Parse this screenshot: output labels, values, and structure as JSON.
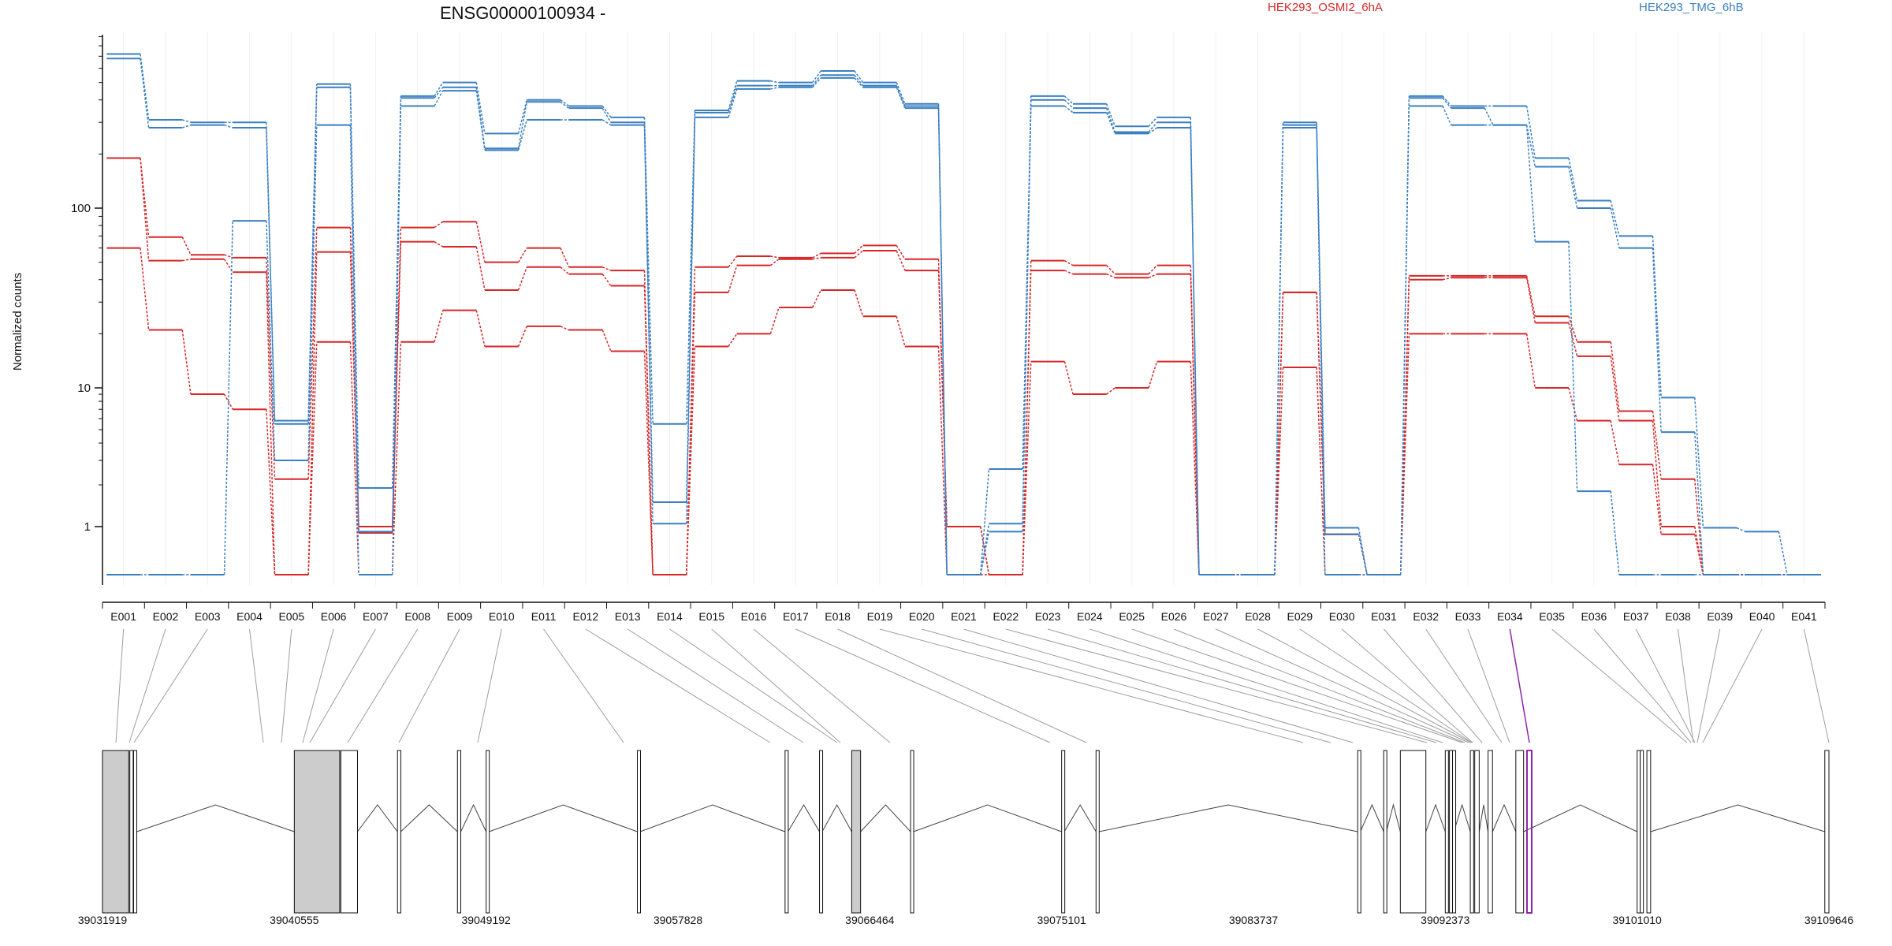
{
  "chart_data": {
    "type": "line",
    "title": "ENSG00000100934 -",
    "ylabel": "Normalized counts",
    "xlabel": "",
    "y_scale": "log",
    "ylim": [
      0.45,
      900
    ],
    "y_ticks": [
      1,
      10,
      100
    ],
    "y_tick_labels": [
      "1",
      "10",
      "100"
    ],
    "grid": "vertical light",
    "legend_placement": "top-right",
    "categories": [
      "E001",
      "E002",
      "E003",
      "E004",
      "E005",
      "E006",
      "E007",
      "E008",
      "E009",
      "E010",
      "E011",
      "E012",
      "E013",
      "E014",
      "E015",
      "E016",
      "E017",
      "E018",
      "E019",
      "E020",
      "E021",
      "E022",
      "E023",
      "E024",
      "E025",
      "E026",
      "E027",
      "E028",
      "E029",
      "E030",
      "E031",
      "E032",
      "E033",
      "E034",
      "E035",
      "E036",
      "E037",
      "E038",
      "E039",
      "E040",
      "E041"
    ],
    "groups": [
      {
        "name": "HEK293_OSMI2_6hA",
        "color": "#d62728"
      },
      {
        "name": "HEK293_TMG_6hB",
        "color": "#3a7fc1"
      }
    ],
    "series": [
      {
        "group": 0,
        "values": [
          190,
          69,
          55,
          53,
          2.2,
          78,
          1.0,
          78,
          84,
          50,
          60,
          47,
          45,
          0.45,
          47,
          54,
          53,
          56,
          62,
          52,
          1.0,
          0.45,
          51,
          48,
          43,
          48,
          0.45,
          0.45,
          34,
          0.88,
          0.45,
          42,
          42,
          42,
          25,
          18,
          6.8,
          2.2,
          0.45,
          0.45,
          0.45
        ]
      },
      {
        "group": 0,
        "values": [
          190,
          51,
          52,
          44,
          0.45,
          57,
          0.9,
          65,
          61,
          35,
          47,
          43,
          37,
          0.45,
          34,
          48,
          52,
          53,
          58,
          45,
          1.0,
          0.45,
          45,
          43,
          41,
          43,
          0.45,
          0.45,
          34,
          0.88,
          0.45,
          40,
          41,
          41,
          23,
          15,
          5.8,
          1.0,
          0.45,
          0.45,
          0.45
        ]
      },
      {
        "group": 0,
        "values": [
          60,
          21,
          9.0,
          7.0,
          0.45,
          18,
          0.45,
          18,
          27,
          17,
          22,
          21,
          16,
          0.45,
          17,
          20,
          28,
          35,
          25,
          17,
          0.45,
          0.45,
          14,
          9.0,
          10,
          14,
          0.45,
          0.45,
          13,
          0.45,
          0.45,
          20,
          20,
          20,
          10,
          5.8,
          2.8,
          0.88,
          0.45,
          0.45,
          0.45
        ]
      },
      {
        "group": 1,
        "values": [
          720,
          310,
          300,
          300,
          5.8,
          490,
          1.9,
          420,
          500,
          260,
          400,
          370,
          320,
          5.5,
          350,
          510,
          500,
          580,
          500,
          380,
          0.45,
          0.92,
          420,
          380,
          285,
          320,
          0.45,
          0.45,
          300,
          0.98,
          0.45,
          420,
          370,
          370,
          190,
          110,
          70,
          8.5,
          0.98,
          0.92,
          0.45
        ]
      },
      {
        "group": 1,
        "values": [
          680,
          280,
          290,
          280,
          5.5,
          470,
          0.92,
          410,
          470,
          215,
          390,
          360,
          300,
          1.5,
          340,
          480,
          480,
          550,
          480,
          370,
          0.45,
          2.6,
          400,
          360,
          265,
          300,
          0.45,
          0.45,
          290,
          0.88,
          0.45,
          410,
          360,
          290,
          170,
          100,
          60,
          4.8,
          0.45,
          0.45,
          0.45
        ]
      },
      {
        "group": 1,
        "values": [
          0.45,
          0.45,
          0.45,
          85,
          3.0,
          290,
          0.45,
          370,
          450,
          210,
          310,
          310,
          290,
          1.05,
          320,
          460,
          470,
          530,
          470,
          360,
          0.45,
          1.05,
          370,
          340,
          260,
          280,
          0.45,
          0.45,
          280,
          0.45,
          0.45,
          370,
          290,
          290,
          65,
          1.8,
          0.45,
          0.45,
          0.45,
          0.45,
          0.45
        ]
      }
    ],
    "gene_model": {
      "coordinate_ticks": [
        "39031919",
        "39040555",
        "39049192",
        "39057828",
        "39066464",
        "39075101",
        "39083737",
        "39092373",
        "39101010",
        "39109646"
      ],
      "genomic_range": [
        39031919,
        39109646
      ],
      "highlighted_exon": "E034",
      "highlight_color": "#8e24aa"
    }
  },
  "colors": {
    "red": "#d62728",
    "blue": "#3a7fc1",
    "axis": "#111111",
    "connector": "#9e9e9e",
    "exon_fill": "#cccccc",
    "highlight": "#8e24aa"
  }
}
